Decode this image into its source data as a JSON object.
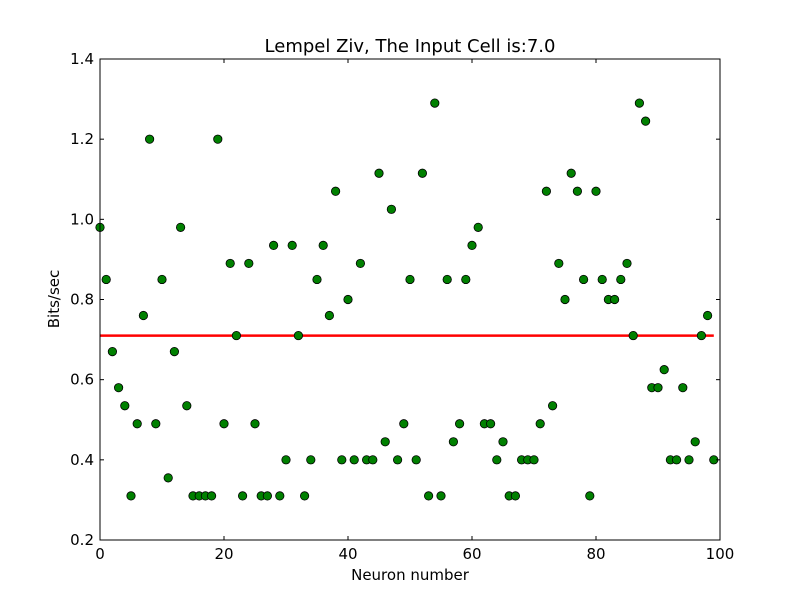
{
  "chart_data": {
    "type": "scatter",
    "title": "Lempel Ziv, The Input Cell is:7.0",
    "xlabel": "Neuron number",
    "ylabel": "Bits/sec",
    "xlim": [
      0,
      100
    ],
    "ylim": [
      0.2,
      1.4
    ],
    "xticks": [
      0,
      20,
      40,
      60,
      80,
      100
    ],
    "yticks": [
      0.2,
      0.4,
      0.6,
      0.8,
      1.0,
      1.2,
      1.4
    ],
    "xtick_labels": [
      "0",
      "20",
      "40",
      "60",
      "80",
      "100"
    ],
    "ytick_labels": [
      "0.2",
      "0.4",
      "0.6",
      "0.8",
      "1.0",
      "1.2",
      "1.4"
    ],
    "grid": false,
    "series": [
      {
        "marker_color": "#008000",
        "x": [
          0,
          1,
          2,
          3,
          4,
          5,
          6,
          7,
          8,
          9,
          10,
          11,
          12,
          13,
          14,
          15,
          16,
          17,
          18,
          19,
          20,
          21,
          22,
          23,
          24,
          25,
          26,
          27,
          28,
          29,
          30,
          31,
          32,
          33,
          34,
          35,
          36,
          37,
          38,
          39,
          40,
          41,
          42,
          43,
          44,
          45,
          46,
          47,
          48,
          49,
          50,
          51,
          52,
          53,
          54,
          55,
          56,
          57,
          58,
          59,
          60,
          61,
          62,
          63,
          64,
          65,
          66,
          67,
          68,
          69,
          70,
          71,
          72,
          73,
          74,
          75,
          76,
          77,
          78,
          79,
          80,
          81,
          82,
          83,
          84,
          85,
          86,
          87,
          88,
          89,
          90,
          91,
          92,
          93,
          94,
          95,
          96,
          97,
          98,
          99
        ],
        "values": [
          0.98,
          0.85,
          0.67,
          0.58,
          0.535,
          0.31,
          0.49,
          0.76,
          1.2,
          0.49,
          0.85,
          0.355,
          0.67,
          0.98,
          0.535,
          0.31,
          0.31,
          0.31,
          0.31,
          1.2,
          0.49,
          0.89,
          0.71,
          0.31,
          0.89,
          0.49,
          0.31,
          0.31,
          0.935,
          0.31,
          0.4,
          0.935,
          0.71,
          0.31,
          0.4,
          0.85,
          0.935,
          0.76,
          1.07,
          0.4,
          0.8,
          0.4,
          0.89,
          0.4,
          0.4,
          1.115,
          0.445,
          1.025,
          0.4,
          0.49,
          0.85,
          0.4,
          1.115,
          0.31,
          1.29,
          0.31,
          0.85,
          0.445,
          0.49,
          0.85,
          0.935,
          0.98,
          0.49,
          0.49,
          0.4,
          0.445,
          0.31,
          0.31,
          0.4,
          0.4,
          0.4,
          0.49,
          1.07,
          0.535,
          0.89,
          0.8,
          1.115,
          1.07,
          0.85,
          0.31,
          1.07,
          0.85,
          0.8,
          0.8,
          0.85,
          0.89,
          0.71,
          1.29,
          1.245,
          0.58,
          0.58,
          0.625,
          0.4,
          0.4,
          0.58,
          0.4,
          0.445,
          0.71,
          0.76,
          0.4
        ]
      }
    ],
    "reference_line": {
      "y": 0.71,
      "x_range": [
        0,
        99
      ],
      "color": "#ff0000"
    }
  }
}
